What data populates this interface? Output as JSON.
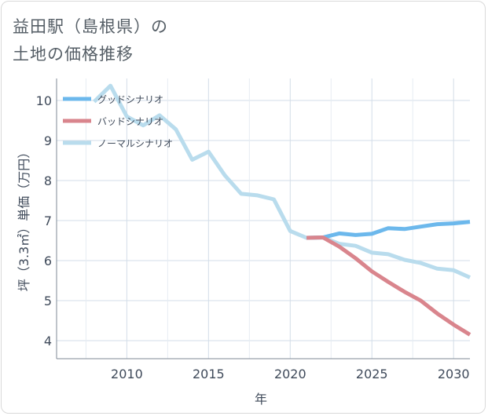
{
  "title": {
    "line1": "益田駅（島根県）の",
    "line2": "土地の価格推移"
  },
  "chart_data": {
    "type": "line",
    "xlabel": "年",
    "ylabel": "坪（3.3㎡）単価（万円）",
    "xlim": [
      2005.7,
      2031.0
    ],
    "ylim": [
      3.55,
      10.55
    ],
    "xticks": [
      2010,
      2015,
      2020,
      2025,
      2030
    ],
    "yticks": [
      4,
      5,
      6,
      7,
      8,
      9,
      10
    ],
    "grid": true,
    "legend_position": "top-left",
    "series": [
      {
        "name": "グッドシナリオ",
        "color": "#6cb8ec",
        "x": [
          2021,
          2022,
          2023,
          2024,
          2025,
          2026,
          2027,
          2028,
          2029,
          2030,
          2031
        ],
        "y": [
          6.57,
          6.58,
          6.68,
          6.64,
          6.67,
          6.81,
          6.79,
          6.85,
          6.91,
          6.93,
          6.97
        ]
      },
      {
        "name": "バッドシナリオ",
        "color": "#d9858d",
        "x": [
          2021,
          2022,
          2023,
          2024,
          2025,
          2026,
          2027,
          2028,
          2029,
          2030,
          2031
        ],
        "y": [
          6.57,
          6.58,
          6.35,
          6.06,
          5.73,
          5.47,
          5.22,
          5.0,
          4.68,
          4.4,
          4.15
        ]
      },
      {
        "name": "ノーマルシナリオ",
        "color": "#b9dced",
        "x": [
          2008,
          2009,
          2010,
          2011,
          2012,
          2013,
          2014,
          2015,
          2016,
          2017,
          2018,
          2019,
          2020,
          2021,
          2022,
          2023,
          2024,
          2025,
          2026,
          2027,
          2028,
          2029,
          2030,
          2031
        ],
        "y": [
          9.97,
          10.37,
          9.6,
          9.38,
          9.63,
          9.28,
          8.52,
          8.72,
          8.13,
          7.67,
          7.63,
          7.53,
          6.74,
          6.57,
          6.58,
          6.42,
          6.37,
          6.2,
          6.16,
          6.02,
          5.94,
          5.8,
          5.76,
          5.58
        ]
      }
    ]
  }
}
